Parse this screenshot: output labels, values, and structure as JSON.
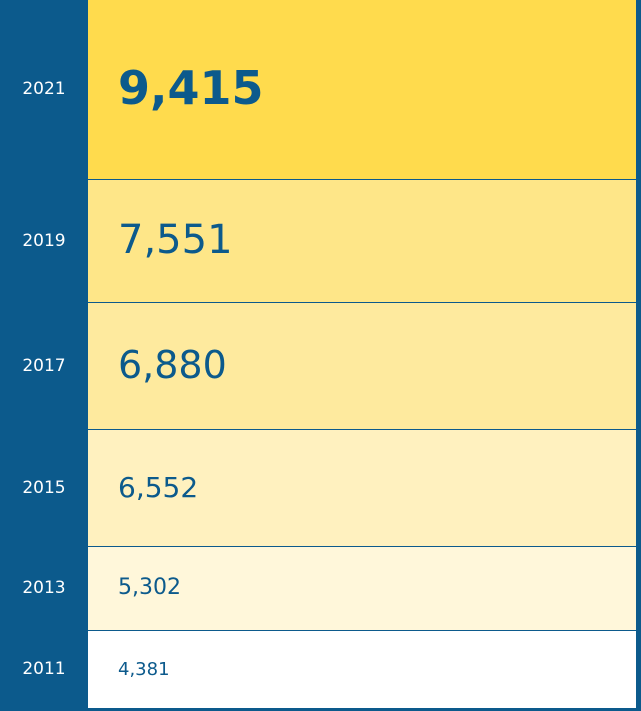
{
  "rows": [
    {
      "year": "2021",
      "value": "9,415"
    },
    {
      "year": "2019",
      "value": "7,551"
    },
    {
      "year": "2017",
      "value": "6,880"
    },
    {
      "year": "2015",
      "value": "6,552"
    },
    {
      "year": "2013",
      "value": "5,302"
    },
    {
      "year": "2011",
      "value": "4,381"
    }
  ]
}
